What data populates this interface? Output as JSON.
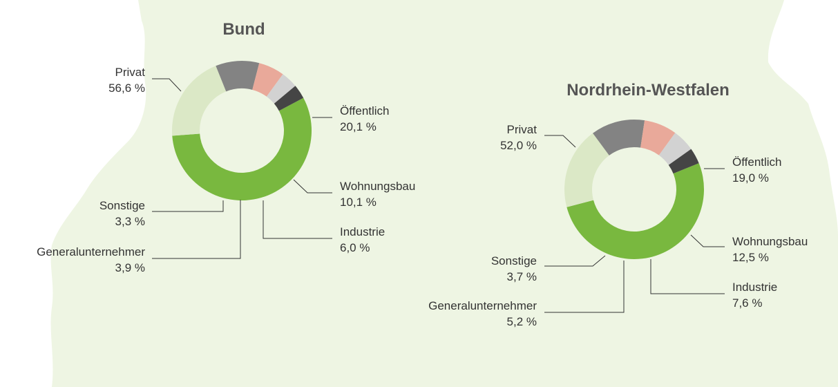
{
  "colors": {
    "background_map": "#eef5e3",
    "privat": "#79b83f",
    "oeffentlich": "#dbe8c6",
    "wohnungsbau": "#838383",
    "industrie": "#e9a99a",
    "generalunternehmer": "#d2d2d2",
    "sonstige": "#454545",
    "text": "#333333",
    "title": "#555555",
    "leader": "#333333"
  },
  "chart_data": [
    {
      "type": "pie",
      "title": "Bund",
      "unit": "%",
      "slices": [
        {
          "key": "privat",
          "label": "Privat",
          "value": 56.6,
          "value_text": "56,6 %"
        },
        {
          "key": "oeffentlich",
          "label": "Öffentlich",
          "value": 20.1,
          "value_text": "20,1 %"
        },
        {
          "key": "wohnungsbau",
          "label": "Wohnungsbau",
          "value": 10.1,
          "value_text": "10,1 %"
        },
        {
          "key": "industrie",
          "label": "Industrie",
          "value": 6.0,
          "value_text": "6,0 %"
        },
        {
          "key": "generalunternehmer",
          "label": "Generalunternehmer",
          "value": 3.9,
          "value_text": "3,9 %"
        },
        {
          "key": "sonstige",
          "label": "Sonstige",
          "value": 3.3,
          "value_text": "3,3 %"
        }
      ]
    },
    {
      "type": "pie",
      "title": "Nordrhein-Westfalen",
      "unit": "%",
      "slices": [
        {
          "key": "privat",
          "label": "Privat",
          "value": 52.0,
          "value_text": "52,0 %"
        },
        {
          "key": "oeffentlich",
          "label": "Öffentlich",
          "value": 19.0,
          "value_text": "19,0 %"
        },
        {
          "key": "wohnungsbau",
          "label": "Wohnungsbau",
          "value": 12.5,
          "value_text": "12,5 %"
        },
        {
          "key": "industrie",
          "label": "Industrie",
          "value": 7.6,
          "value_text": "7,6 %"
        },
        {
          "key": "generalunternehmer",
          "label": "Generalunternehmer",
          "value": 5.2,
          "value_text": "5,2 %"
        },
        {
          "key": "sonstige",
          "label": "Sonstige",
          "value": 3.7,
          "value_text": "3,7 %"
        }
      ]
    }
  ]
}
